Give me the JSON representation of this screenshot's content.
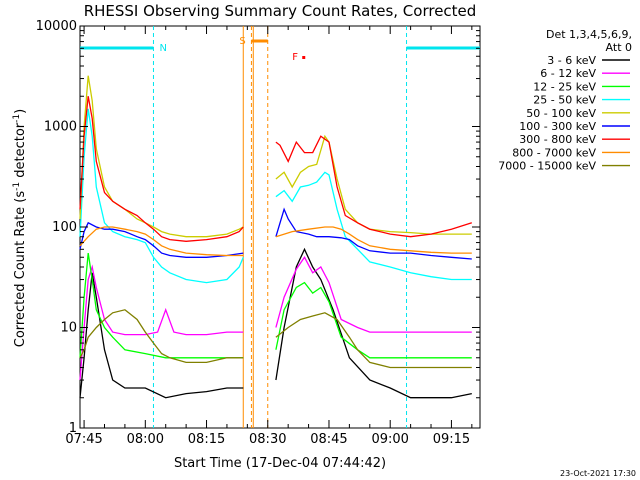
{
  "title": "RHESSI Observing Summary Count Rates, Corrected",
  "xlabel": "Start Time (17-Dec-04 07:44:42)",
  "ylabel_parts": [
    "Corrected Count Rate (s",
    "-1",
    " detector",
    "-1",
    ")"
  ],
  "timestamp": "23-Oct-2021 17:30",
  "legend_header": [
    "Det 1,3,4,5,6,9,",
    "Att 0"
  ],
  "chart_data": {
    "type": "line",
    "x_unit": "UT time (hh:mm), 17-Dec-04",
    "xlim": [
      "07:44",
      "09:22"
    ],
    "x_ticks": [
      "07:45",
      "08:00",
      "08:15",
      "08:30",
      "08:45",
      "09:00",
      "09:15"
    ],
    "y_scale": "log",
    "ylim": [
      1,
      10000
    ],
    "y_ticks": [
      "1",
      "10",
      "100",
      "1000",
      "10000"
    ],
    "flags": [
      {
        "label": "N",
        "type": "night",
        "color": "#00e5ee",
        "start": "07:44",
        "end": "08:02"
      },
      {
        "label": "N",
        "type": "night",
        "color": "#00e5ee",
        "start": "09:04",
        "end": "09:22"
      },
      {
        "label": "S",
        "type": "SAA",
        "color": "#ff8c00",
        "start": "08:26",
        "end": "08:30"
      },
      {
        "label": "F",
        "type": "flare",
        "color": "#ff0000",
        "start": "08:36",
        "end": "08:36"
      }
    ],
    "gap": [
      "08:24",
      "08:32"
    ],
    "series": [
      {
        "name": "3 - 6 keV",
        "color": "#000000",
        "points": [
          [
            "07:44",
            2
          ],
          [
            "07:45",
            5
          ],
          [
            "07:46",
            15
          ],
          [
            "07:47",
            35
          ],
          [
            "07:48",
            20
          ],
          [
            "07:50",
            6
          ],
          [
            "07:52",
            3
          ],
          [
            "07:55",
            2.5
          ],
          [
            "08:00",
            2.5
          ],
          [
            "08:05",
            2
          ],
          [
            "08:10",
            2.2
          ],
          [
            "08:15",
            2.3
          ],
          [
            "08:20",
            2.5
          ],
          [
            "08:24",
            2.5
          ],
          [
            "08:32",
            3
          ],
          [
            "08:34",
            10
          ],
          [
            "08:37",
            40
          ],
          [
            "08:39",
            60
          ],
          [
            "08:41",
            40
          ],
          [
            "08:43",
            30
          ],
          [
            "08:46",
            15
          ],
          [
            "08:50",
            5
          ],
          [
            "08:55",
            3
          ],
          [
            "09:00",
            2.5
          ],
          [
            "09:05",
            2
          ],
          [
            "09:10",
            2
          ],
          [
            "09:15",
            2
          ],
          [
            "09:20",
            2.2
          ]
        ]
      },
      {
        "name": "6 - 12 keV",
        "color": "#ff00ff",
        "points": [
          [
            "07:44",
            3
          ],
          [
            "07:45",
            10
          ],
          [
            "07:46",
            30
          ],
          [
            "07:47",
            40
          ],
          [
            "07:48",
            25
          ],
          [
            "07:50",
            12
          ],
          [
            "07:52",
            9
          ],
          [
            "07:55",
            8.5
          ],
          [
            "08:00",
            8.5
          ],
          [
            "08:03",
            9
          ],
          [
            "08:05",
            15
          ],
          [
            "08:07",
            9
          ],
          [
            "08:10",
            8.5
          ],
          [
            "08:15",
            8.5
          ],
          [
            "08:20",
            9
          ],
          [
            "08:24",
            9
          ],
          [
            "08:32",
            10
          ],
          [
            "08:34",
            20
          ],
          [
            "08:37",
            38
          ],
          [
            "08:39",
            50
          ],
          [
            "08:41",
            35
          ],
          [
            "08:43",
            40
          ],
          [
            "08:45",
            28
          ],
          [
            "08:48",
            12
          ],
          [
            "08:52",
            10
          ],
          [
            "08:55",
            9
          ],
          [
            "09:00",
            9
          ],
          [
            "09:05",
            9
          ],
          [
            "09:10",
            9
          ],
          [
            "09:15",
            9
          ],
          [
            "09:20",
            9
          ]
        ]
      },
      {
        "name": "12 - 25 keV",
        "color": "#00ff00",
        "points": [
          [
            "07:44",
            5
          ],
          [
            "07:45",
            20
          ],
          [
            "07:46",
            55
          ],
          [
            "07:47",
            30
          ],
          [
            "07:48",
            15
          ],
          [
            "07:50",
            10
          ],
          [
            "07:52",
            8
          ],
          [
            "07:55",
            6
          ],
          [
            "08:00",
            5.5
          ],
          [
            "08:05",
            5
          ],
          [
            "08:10",
            5
          ],
          [
            "08:15",
            5
          ],
          [
            "08:20",
            5
          ],
          [
            "08:24",
            5
          ],
          [
            "08:32",
            6
          ],
          [
            "08:34",
            15
          ],
          [
            "08:37",
            25
          ],
          [
            "08:39",
            28
          ],
          [
            "08:41",
            22
          ],
          [
            "08:43",
            25
          ],
          [
            "08:45",
            18
          ],
          [
            "08:48",
            8
          ],
          [
            "08:52",
            6
          ],
          [
            "08:55",
            5
          ],
          [
            "09:00",
            5
          ],
          [
            "09:05",
            5
          ],
          [
            "09:10",
            5
          ],
          [
            "09:15",
            5
          ],
          [
            "09:20",
            5
          ]
        ]
      },
      {
        "name": "25 - 50 keV",
        "color": "#00ffff",
        "points": [
          [
            "07:44",
            80
          ],
          [
            "07:45",
            500
          ],
          [
            "07:46",
            1500
          ],
          [
            "07:47",
            800
          ],
          [
            "07:48",
            250
          ],
          [
            "07:50",
            110
          ],
          [
            "07:52",
            90
          ],
          [
            "07:55",
            80
          ],
          [
            "07:58",
            75
          ],
          [
            "08:00",
            70
          ],
          [
            "08:02",
            50
          ],
          [
            "08:04",
            40
          ],
          [
            "08:06",
            35
          ],
          [
            "08:10",
            30
          ],
          [
            "08:15",
            28
          ],
          [
            "08:20",
            30
          ],
          [
            "08:23",
            40
          ],
          [
            "08:24",
            50
          ],
          [
            "08:32",
            200
          ],
          [
            "08:34",
            230
          ],
          [
            "08:36",
            180
          ],
          [
            "08:38",
            250
          ],
          [
            "08:40",
            260
          ],
          [
            "08:42",
            280
          ],
          [
            "08:44",
            350
          ],
          [
            "08:45",
            330
          ],
          [
            "08:47",
            150
          ],
          [
            "08:49",
            80
          ],
          [
            "08:52",
            60
          ],
          [
            "08:55",
            45
          ],
          [
            "09:00",
            40
          ],
          [
            "09:05",
            35
          ],
          [
            "09:10",
            32
          ],
          [
            "09:15",
            30
          ],
          [
            "09:20",
            30
          ]
        ]
      },
      {
        "name": "50 - 100 keV",
        "color": "#cccc00",
        "points": [
          [
            "07:44",
            120
          ],
          [
            "07:45",
            1000
          ],
          [
            "07:46",
            3200
          ],
          [
            "07:47",
            1800
          ],
          [
            "07:48",
            600
          ],
          [
            "07:50",
            250
          ],
          [
            "07:52",
            180
          ],
          [
            "07:55",
            150
          ],
          [
            "07:58",
            120
          ],
          [
            "08:00",
            110
          ],
          [
            "08:02",
            100
          ],
          [
            "08:04",
            90
          ],
          [
            "08:06",
            85
          ],
          [
            "08:10",
            80
          ],
          [
            "08:15",
            80
          ],
          [
            "08:20",
            85
          ],
          [
            "08:23",
            95
          ],
          [
            "08:24",
            100
          ],
          [
            "08:32",
            300
          ],
          [
            "08:34",
            350
          ],
          [
            "08:36",
            250
          ],
          [
            "08:38",
            350
          ],
          [
            "08:40",
            400
          ],
          [
            "08:42",
            420
          ],
          [
            "08:44",
            800
          ],
          [
            "08:45",
            700
          ],
          [
            "08:47",
            300
          ],
          [
            "08:49",
            150
          ],
          [
            "08:52",
            110
          ],
          [
            "08:55",
            95
          ],
          [
            "09:00",
            90
          ],
          [
            "09:05",
            88
          ],
          [
            "09:10",
            85
          ],
          [
            "09:15",
            85
          ],
          [
            "09:20",
            85
          ]
        ]
      },
      {
        "name": "100 - 300 keV",
        "color": "#0000ff",
        "points": [
          [
            "07:44",
            60
          ],
          [
            "07:45",
            90
          ],
          [
            "07:46",
            110
          ],
          [
            "07:48",
            100
          ],
          [
            "07:50",
            95
          ],
          [
            "07:52",
            95
          ],
          [
            "07:55",
            90
          ],
          [
            "07:58",
            80
          ],
          [
            "08:00",
            75
          ],
          [
            "08:02",
            65
          ],
          [
            "08:04",
            55
          ],
          [
            "08:06",
            52
          ],
          [
            "08:10",
            50
          ],
          [
            "08:15",
            50
          ],
          [
            "08:20",
            52
          ],
          [
            "08:24",
            55
          ],
          [
            "08:32",
            80
          ],
          [
            "08:34",
            150
          ],
          [
            "08:35",
            120
          ],
          [
            "08:37",
            90
          ],
          [
            "08:40",
            85
          ],
          [
            "08:42",
            80
          ],
          [
            "08:45",
            80
          ],
          [
            "08:48",
            78
          ],
          [
            "08:50",
            75
          ],
          [
            "08:52",
            65
          ],
          [
            "08:55",
            58
          ],
          [
            "09:00",
            55
          ],
          [
            "09:05",
            55
          ],
          [
            "09:10",
            52
          ],
          [
            "09:15",
            50
          ],
          [
            "09:20",
            48
          ]
        ]
      },
      {
        "name": "300 - 800 keV",
        "color": "#ff0000",
        "points": [
          [
            "07:44",
            150
          ],
          [
            "07:45",
            800
          ],
          [
            "07:46",
            2000
          ],
          [
            "07:47",
            1200
          ],
          [
            "07:48",
            450
          ],
          [
            "07:50",
            220
          ],
          [
            "07:52",
            180
          ],
          [
            "07:55",
            150
          ],
          [
            "07:58",
            130
          ],
          [
            "08:00",
            110
          ],
          [
            "08:02",
            95
          ],
          [
            "08:04",
            80
          ],
          [
            "08:06",
            75
          ],
          [
            "08:10",
            72
          ],
          [
            "08:15",
            75
          ],
          [
            "08:20",
            80
          ],
          [
            "08:23",
            90
          ],
          [
            "08:24",
            100
          ],
          [
            "08:32",
            700
          ],
          [
            "08:33",
            650
          ],
          [
            "08:35",
            450
          ],
          [
            "08:37",
            700
          ],
          [
            "08:39",
            550
          ],
          [
            "08:41",
            550
          ],
          [
            "08:43",
            800
          ],
          [
            "08:45",
            700
          ],
          [
            "08:47",
            250
          ],
          [
            "08:49",
            130
          ],
          [
            "08:52",
            110
          ],
          [
            "08:55",
            95
          ],
          [
            "09:00",
            85
          ],
          [
            "09:05",
            80
          ],
          [
            "09:10",
            85
          ],
          [
            "09:15",
            95
          ],
          [
            "09:20",
            110
          ]
        ]
      },
      {
        "name": "800 - 7000 keV",
        "color": "#ff8c00",
        "points": [
          [
            "07:44",
            65
          ],
          [
            "07:46",
            80
          ],
          [
            "07:48",
            95
          ],
          [
            "07:50",
            100
          ],
          [
            "07:52",
            100
          ],
          [
            "07:55",
            95
          ],
          [
            "07:58",
            90
          ],
          [
            "08:00",
            85
          ],
          [
            "08:02",
            75
          ],
          [
            "08:04",
            65
          ],
          [
            "08:06",
            60
          ],
          [
            "08:10",
            55
          ],
          [
            "08:15",
            53
          ],
          [
            "08:20",
            52
          ],
          [
            "08:24",
            52
          ],
          [
            "08:32",
            80
          ],
          [
            "08:36",
            90
          ],
          [
            "08:40",
            95
          ],
          [
            "08:44",
            100
          ],
          [
            "08:46",
            100
          ],
          [
            "08:48",
            95
          ],
          [
            "08:50",
            85
          ],
          [
            "08:52",
            75
          ],
          [
            "08:55",
            65
          ],
          [
            "09:00",
            60
          ],
          [
            "09:05",
            58
          ],
          [
            "09:10",
            56
          ],
          [
            "09:15",
            55
          ],
          [
            "09:20",
            55
          ]
        ]
      },
      {
        "name": "7000 - 15000 keV",
        "color": "#808000",
        "points": [
          [
            "07:44",
            5
          ],
          [
            "07:45",
            6
          ],
          [
            "07:46",
            8
          ],
          [
            "07:48",
            10
          ],
          [
            "07:50",
            12
          ],
          [
            "07:52",
            14
          ],
          [
            "07:55",
            15
          ],
          [
            "07:58",
            12
          ],
          [
            "08:00",
            9
          ],
          [
            "08:02",
            7
          ],
          [
            "08:04",
            5.5
          ],
          [
            "08:06",
            5
          ],
          [
            "08:10",
            4.5
          ],
          [
            "08:15",
            4.5
          ],
          [
            "08:20",
            5
          ],
          [
            "08:24",
            5
          ],
          [
            "08:32",
            8
          ],
          [
            "08:35",
            10
          ],
          [
            "08:38",
            12
          ],
          [
            "08:41",
            13
          ],
          [
            "08:44",
            14
          ],
          [
            "08:47",
            12
          ],
          [
            "08:50",
            8
          ],
          [
            "08:52",
            6
          ],
          [
            "08:55",
            4.5
          ],
          [
            "09:00",
            4
          ],
          [
            "09:05",
            4
          ],
          [
            "09:10",
            4
          ],
          [
            "09:15",
            4
          ],
          [
            "09:20",
            4
          ]
        ]
      }
    ]
  }
}
